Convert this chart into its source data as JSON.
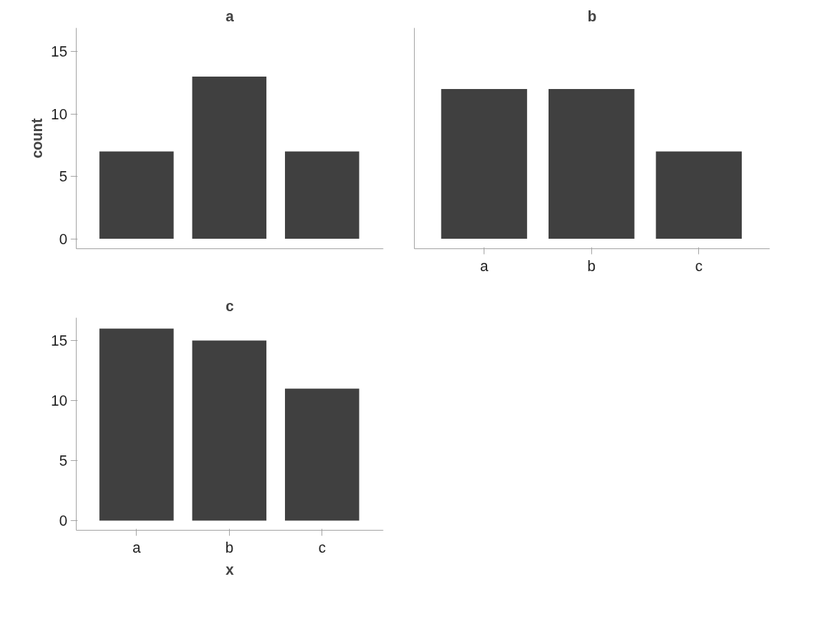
{
  "chart_data": [
    {
      "type": "bar",
      "title": "a",
      "ylabel": "count",
      "categories": [
        null,
        null,
        null
      ],
      "values": [
        7,
        13,
        7
      ],
      "color": "#404040",
      "ylim": [
        -0.8,
        16.9
      ],
      "yticks": [
        0,
        5,
        10,
        15
      ],
      "tick_labels": "y",
      "grid": false
    },
    {
      "type": "bar",
      "title": "b",
      "categories": [
        "a",
        "b",
        "c"
      ],
      "values": [
        12,
        12,
        7
      ],
      "color": "#404040",
      "ylim": [
        -0.8,
        16.9
      ],
      "yticks": [
        0,
        5,
        10,
        15
      ],
      "tick_labels": "x",
      "grid": false
    },
    {
      "type": "bar",
      "title": "c",
      "xlabel": "x",
      "categories": [
        "a",
        "b",
        "c"
      ],
      "values": [
        16,
        15,
        11
      ],
      "color": "#404040",
      "ylim": [
        -0.8,
        16.9
      ],
      "yticks": [
        0,
        5,
        10,
        15
      ],
      "grid": false
    }
  ]
}
